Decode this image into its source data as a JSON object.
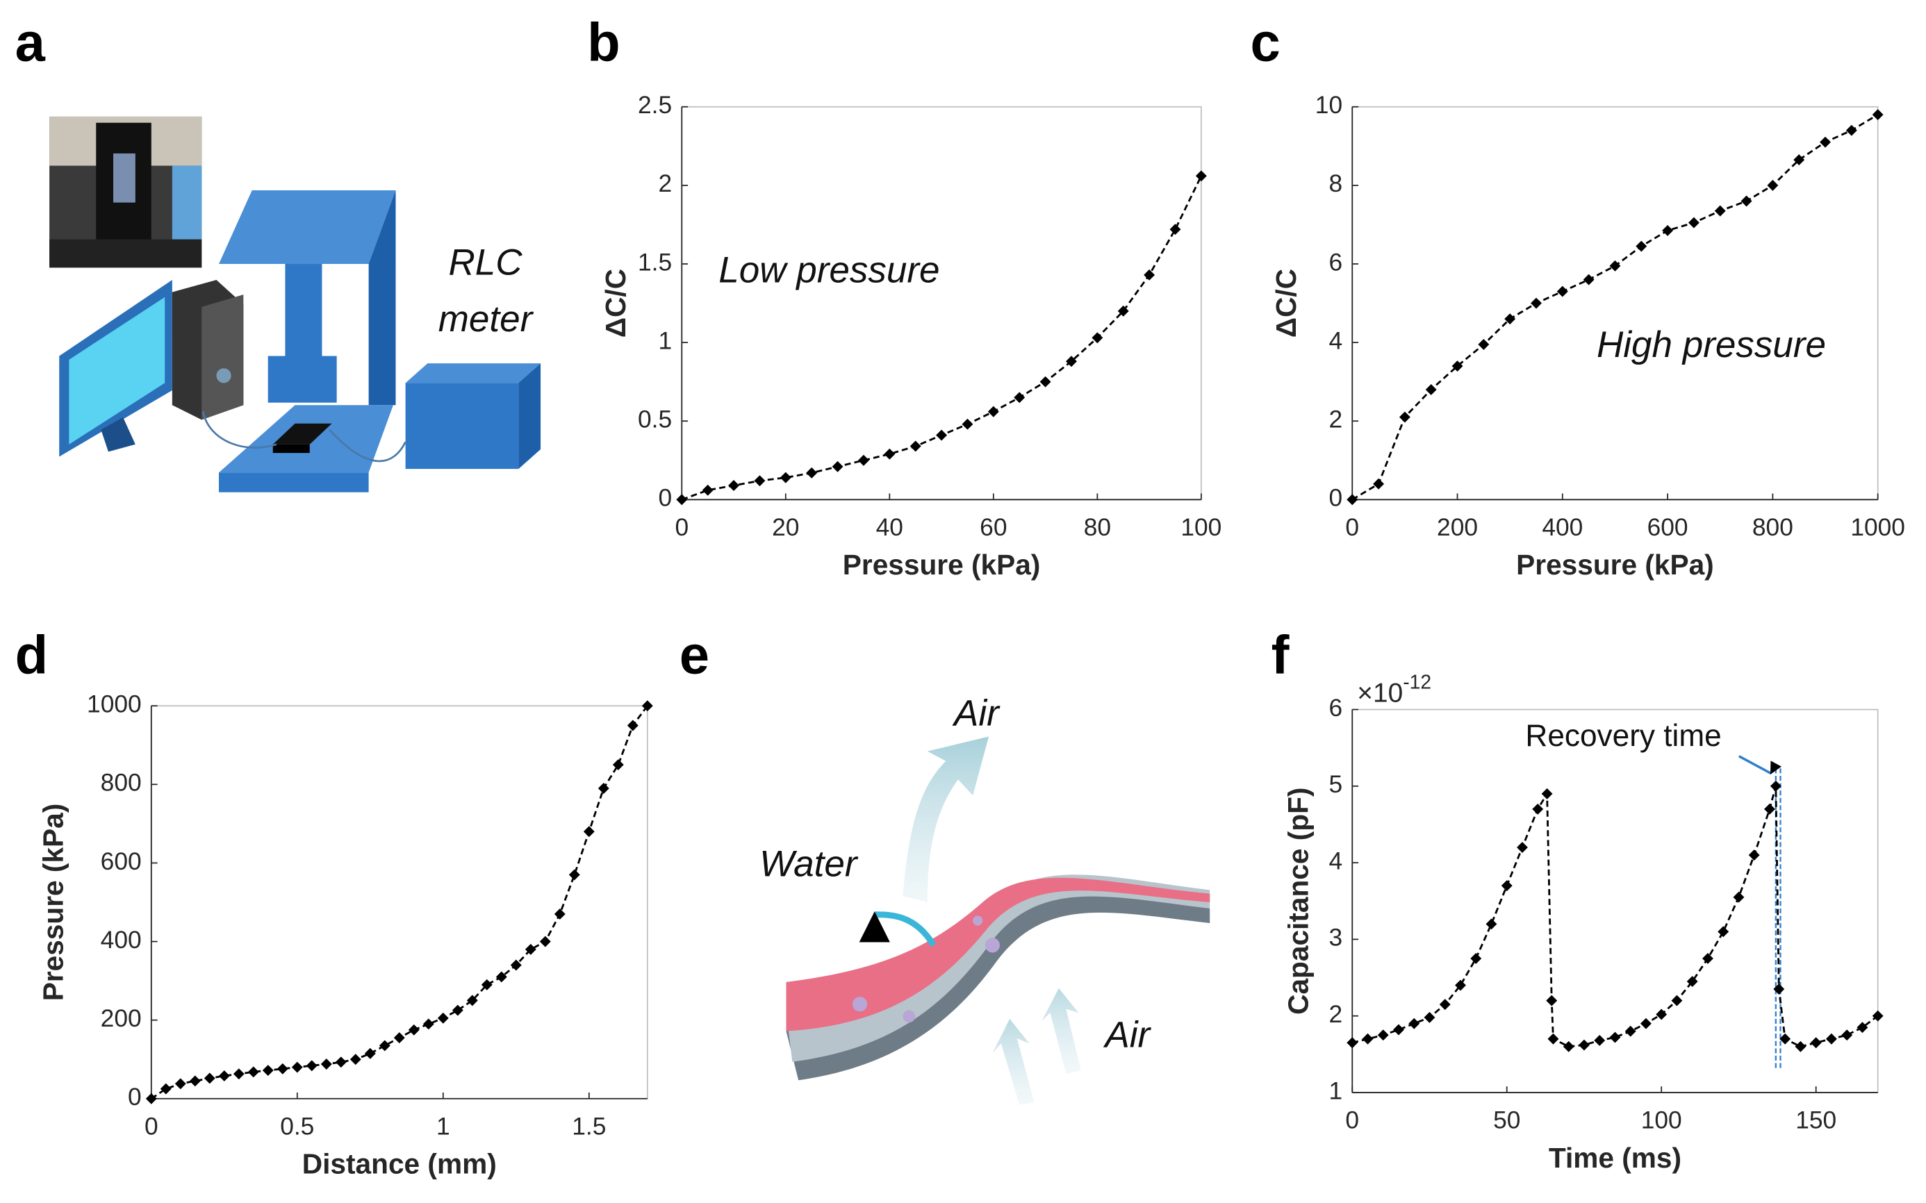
{
  "panel_labels": [
    "a",
    "b",
    "c",
    "d",
    "e",
    "f"
  ],
  "panel_a": {
    "labels": [
      "RLC",
      "meter"
    ]
  },
  "panel_e": {
    "labels": [
      "Air",
      "Water",
      "Air"
    ]
  },
  "chart_data": [
    {
      "type": "line",
      "xlabel": "Pressure (kPa)",
      "ylabel": "ΔC/C",
      "color": "#000000",
      "annotations": [
        "Low pressure"
      ],
      "x": [
        0,
        5,
        10,
        15,
        20,
        25,
        30,
        35,
        40,
        45,
        50,
        55,
        60,
        65,
        70,
        75,
        80,
        85,
        90,
        95,
        100
      ],
      "values": [
        0,
        0.06,
        0.09,
        0.12,
        0.14,
        0.17,
        0.21,
        0.25,
        0.29,
        0.34,
        0.41,
        0.48,
        0.56,
        0.65,
        0.75,
        0.88,
        1.03,
        1.2,
        1.43,
        1.72,
        2.06
      ],
      "xlim": [
        0,
        100
      ],
      "xticks": [
        0,
        20,
        40,
        60,
        80,
        100
      ],
      "ylim": [
        0,
        2.5
      ],
      "yticks": [
        0,
        0.5,
        1,
        1.5,
        2,
        2.5
      ]
    },
    {
      "type": "line",
      "xlabel": "Pressure (kPa)",
      "ylabel": "ΔC/C",
      "color": "#000000",
      "annotations": [
        "High pressure"
      ],
      "x": [
        0,
        50,
        100,
        150,
        200,
        250,
        300,
        350,
        400,
        450,
        500,
        550,
        600,
        650,
        700,
        750,
        800,
        850,
        900,
        950,
        1000
      ],
      "values": [
        0,
        0.4,
        2.1,
        2.8,
        3.4,
        3.95,
        4.6,
        5.0,
        5.3,
        5.6,
        5.95,
        6.45,
        6.85,
        7.05,
        7.35,
        7.6,
        8.0,
        8.65,
        9.1,
        9.4,
        9.8
      ],
      "xlim": [
        0,
        1000
      ],
      "xticks": [
        0,
        200,
        400,
        600,
        800,
        1000
      ],
      "ylim": [
        0,
        10
      ],
      "yticks": [
        0,
        2,
        4,
        6,
        8,
        10
      ]
    },
    {
      "type": "line",
      "xlabel": "Distance (mm)",
      "ylabel": "Pressure (kPa)",
      "color": "#000000",
      "annotations": [],
      "x": [
        0,
        0.05,
        0.1,
        0.15,
        0.2,
        0.25,
        0.3,
        0.35,
        0.4,
        0.45,
        0.5,
        0.55,
        0.6,
        0.65,
        0.7,
        0.75,
        0.8,
        0.85,
        0.9,
        0.95,
        1.0,
        1.05,
        1.1,
        1.15,
        1.2,
        1.25,
        1.3,
        1.35,
        1.4,
        1.45,
        1.5,
        1.55,
        1.6,
        1.65,
        1.7
      ],
      "values": [
        0,
        25,
        38,
        45,
        52,
        58,
        63,
        68,
        72,
        76,
        80,
        84,
        88,
        93,
        100,
        115,
        135,
        155,
        175,
        190,
        205,
        225,
        250,
        290,
        310,
        340,
        380,
        400,
        470,
        570,
        680,
        790,
        850,
        950,
        1000
      ],
      "xlim": [
        0,
        1.7
      ],
      "xticks": [
        0,
        0.5,
        1,
        1.5
      ],
      "ylim": [
        0,
        1000
      ],
      "yticks": [
        0,
        200,
        400,
        600,
        800,
        1000
      ]
    },
    {
      "type": "line",
      "xlabel": "Time (ms)",
      "ylabel": "Capacitance (pF)",
      "color": "#000000",
      "annotations": [
        "Recovery time"
      ],
      "y_multiplier": {
        "base": "×10",
        "exponent": "-12"
      },
      "vlines": [
        137,
        138.5
      ],
      "vline_color": "#2f7fd0",
      "x": [
        0,
        5,
        10,
        15,
        20,
        25,
        30,
        35,
        40,
        45,
        50,
        55,
        60,
        63,
        64.5,
        65,
        70,
        75,
        80,
        85,
        90,
        95,
        100,
        105,
        110,
        115,
        120,
        125,
        130,
        135,
        137,
        138,
        140,
        145,
        150,
        155,
        160,
        165,
        170
      ],
      "values": [
        1.65,
        1.7,
        1.75,
        1.82,
        1.9,
        1.98,
        2.15,
        2.4,
        2.75,
        3.2,
        3.7,
        4.2,
        4.7,
        4.9,
        2.2,
        1.7,
        1.6,
        1.62,
        1.68,
        1.72,
        1.8,
        1.9,
        2.02,
        2.2,
        2.45,
        2.75,
        3.1,
        3.55,
        4.1,
        4.7,
        5.0,
        2.35,
        1.7,
        1.6,
        1.65,
        1.7,
        1.75,
        1.85,
        2.0
      ],
      "xlim": [
        0,
        170
      ],
      "xticks": [
        0,
        50,
        100,
        150
      ],
      "ylim": [
        1,
        6
      ],
      "yticks": [
        1,
        2,
        3,
        4,
        5,
        6
      ]
    }
  ]
}
